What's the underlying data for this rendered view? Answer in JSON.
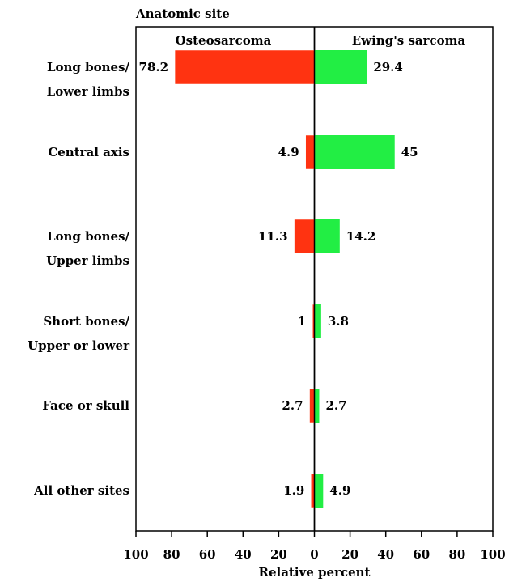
{
  "chart_data": {
    "type": "bar",
    "subtype": "butterfly",
    "title": "Anatomic site",
    "xlabel": "Relative percent",
    "xlim": [
      -100,
      100
    ],
    "x_ticks": [
      "100",
      "80",
      "60",
      "40",
      "20",
      "0",
      "20",
      "40",
      "60",
      "80",
      "100"
    ],
    "grid": false,
    "categories": [
      [
        "Long bones/",
        "Lower limbs"
      ],
      [
        "Central axis"
      ],
      [
        "Long bones/",
        "Upper limbs"
      ],
      [
        "Short bones/",
        "Upper or lower"
      ],
      [
        "Face or skull"
      ],
      [
        "All other sites"
      ]
    ],
    "series": [
      {
        "name": "Osteosarcoma",
        "side": "left",
        "color": "#ff3311",
        "values": [
          78.2,
          4.9,
          11.3,
          1,
          2.7,
          1.9
        ],
        "labels": [
          "78.2",
          "4.9",
          "11.3",
          "1",
          "2.7",
          "1.9"
        ]
      },
      {
        "name": "Ewing's sarcoma",
        "side": "right",
        "color": "#22ee44",
        "values": [
          29.4,
          45,
          14.2,
          3.8,
          2.7,
          4.9
        ],
        "labels": [
          "29.4",
          "45",
          "14.2",
          "3.8",
          "2.7",
          "4.9"
        ]
      }
    ]
  }
}
